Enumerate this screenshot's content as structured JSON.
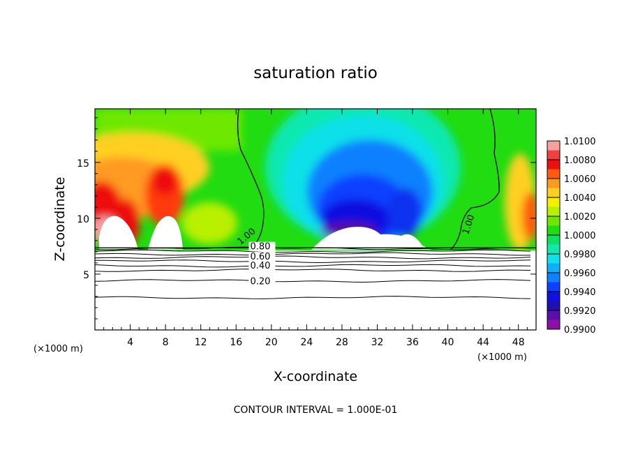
{
  "chart_data": {
    "type": "heatmap",
    "title": "saturation ratio",
    "xlabel": "X-coordinate",
    "ylabel": "Z-coordinate",
    "x_unit": "(×1000 m)",
    "x_unit_right": "(×1000 m)",
    "xlim": [
      0,
      50
    ],
    "ylim": [
      0,
      19.8
    ],
    "x_ticks": [
      4,
      8,
      12,
      16,
      20,
      24,
      28,
      32,
      36,
      40,
      44,
      48
    ],
    "y_ticks": [
      5,
      10,
      15
    ],
    "colorbar": {
      "levels": [
        "1.0100",
        "1.0080",
        "1.0060",
        "1.0040",
        "1.0020",
        "1.0000",
        "0.9980",
        "0.9960",
        "0.9940",
        "0.9920",
        "0.9900"
      ],
      "min": 0.99,
      "max": 1.01,
      "colors": [
        "#f7a0a0",
        "#f04040",
        "#ee1010",
        "#ff5a10",
        "#ff9a20",
        "#ffd020",
        "#f4f000",
        "#b8f000",
        "#6ee800",
        "#20dc10",
        "#10e060",
        "#10e8b0",
        "#10e0e8",
        "#10b0f8",
        "#1080ff",
        "#1040ff",
        "#1010e0",
        "#2010b0",
        "#5a10a8",
        "#8a10a8"
      ]
    },
    "contour_labels": [
      {
        "text": "1.00",
        "x": 16.5,
        "y": 7.6
      },
      {
        "text": "0.80",
        "x": 17.6,
        "y": 7.2
      },
      {
        "text": "0.60",
        "x": 17.6,
        "y": 6.3
      },
      {
        "text": "0.40",
        "x": 17.6,
        "y": 5.5
      },
      {
        "text": "0.20",
        "x": 17.6,
        "y": 4.1
      },
      {
        "text": "1.00",
        "x": 42.3,
        "y": 8.5
      }
    ],
    "contour_lines_below": [
      7.3,
      7.05,
      6.8,
      6.5,
      6.15,
      5.75,
      5.35,
      4.4,
      2.9
    ],
    "terrain_top": 7.35,
    "annotation": "CONTOUR INTERVAL = 1.000E-01"
  }
}
